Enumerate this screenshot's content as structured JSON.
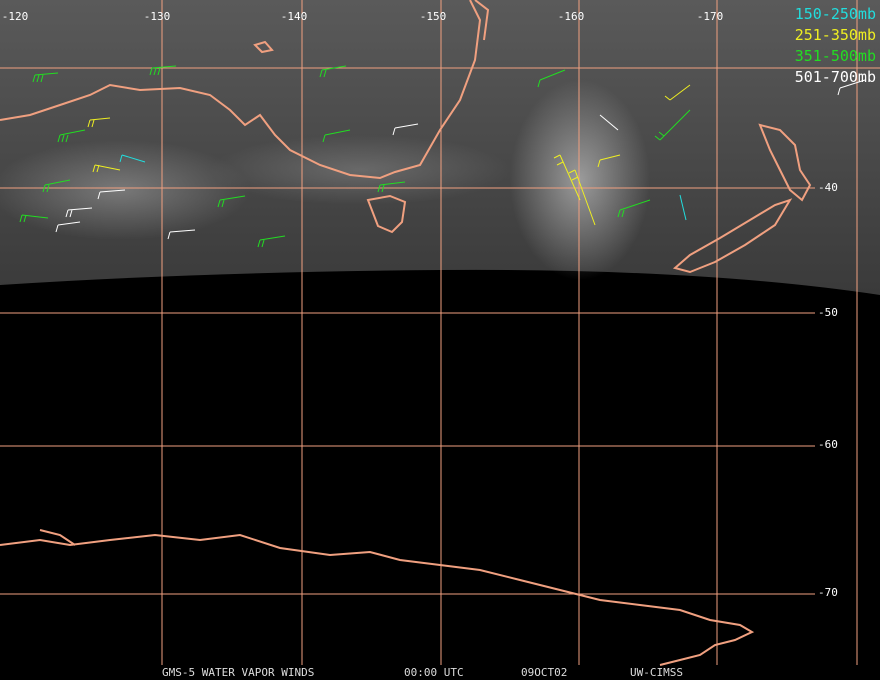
{
  "longitude_labels": [
    "-120",
    "-130",
    "-140",
    "-150",
    "-160",
    "-170"
  ],
  "latitude_labels": [
    "-40",
    "-50",
    "-60",
    "-70"
  ],
  "legend": [
    "150-250mb",
    "251-350mb",
    "351-500mb",
    "501-700mb"
  ],
  "footer": [
    "GMS-5 WATER VAPOR WINDS",
    "00:00 UTC",
    "09OCT02",
    "UW-CIMSS"
  ]
}
